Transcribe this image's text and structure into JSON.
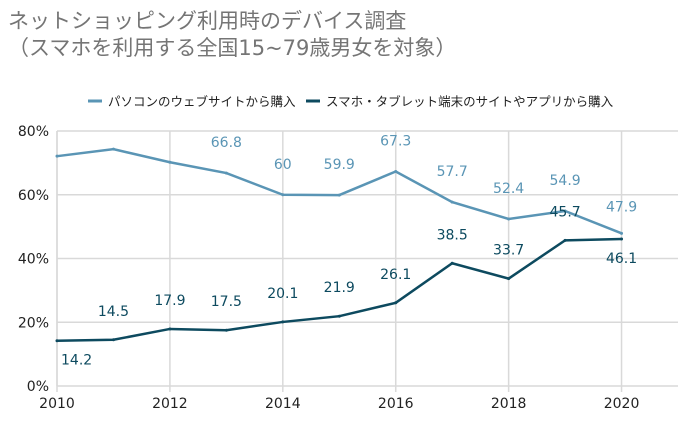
{
  "chart_data": {
    "type": "line",
    "title": "ネットショッピング利用時のデバイス調査\n（スマホを利用する全国15~79歳男女を対象）",
    "x": [
      2010,
      2011,
      2012,
      2013,
      2014,
      2015,
      2016,
      2017,
      2018,
      2019,
      2020
    ],
    "xticks": [
      "2010",
      "2012",
      "2014",
      "2016",
      "2018",
      "2020"
    ],
    "yticks": [
      "0%",
      "20%",
      "40%",
      "60%",
      "80%"
    ],
    "xlim": [
      2010,
      2021
    ],
    "ylim": [
      0,
      80
    ],
    "grid": true,
    "legend": "top",
    "series": [
      {
        "name": "パソコンのウェブサイトから購入",
        "color": "#5a95b5",
        "values": [
          72.1,
          74.3,
          70.2,
          66.8,
          60,
          59.9,
          67.3,
          57.7,
          52.4,
          54.9,
          47.9
        ],
        "labels": [
          null,
          null,
          null,
          "66.8",
          "60",
          "59.9",
          "67.3",
          "57.7",
          "52.4",
          "54.9",
          "47.9"
        ]
      },
      {
        "name": "スマホ・タブレット端末のサイトやアプリから購入",
        "color": "#0d4a5f",
        "values": [
          14.2,
          14.5,
          17.9,
          17.5,
          20.1,
          21.9,
          26.1,
          38.5,
          33.7,
          45.7,
          46.1
        ],
        "labels": [
          "14.2",
          "14.5",
          "17.9",
          "17.5",
          "20.1",
          "21.9",
          "26.1",
          "38.5",
          "33.7",
          "45.7",
          "46.1"
        ]
      }
    ]
  }
}
